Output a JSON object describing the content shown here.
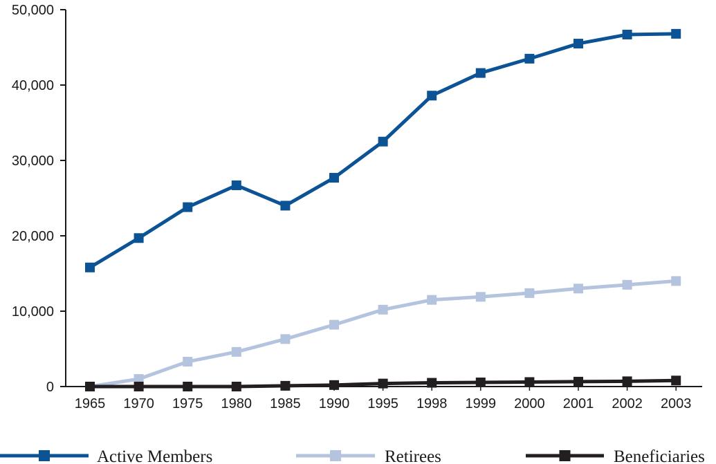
{
  "chart_data": {
    "type": "line",
    "categories": [
      "1965",
      "1970",
      "1975",
      "1980",
      "1985",
      "1990",
      "1995",
      "1998",
      "1999",
      "2000",
      "2001",
      "2002",
      "2003"
    ],
    "ylim": [
      0,
      50000
    ],
    "yticks": [
      0,
      10000,
      20000,
      30000,
      40000,
      50000
    ],
    "ytick_labels": [
      "0",
      "10,000",
      "20,000",
      "30,000",
      "40,000",
      "50,000"
    ],
    "grid": false,
    "legend_position": "bottom",
    "series": [
      {
        "name": "Active Members",
        "color": "#0b5394",
        "values": [
          15800,
          19700,
          23800,
          26700,
          24000,
          27700,
          32500,
          38600,
          41600,
          43500,
          45500,
          46700,
          46800
        ]
      },
      {
        "name": "Retirees",
        "color": "#b4c3de",
        "values": [
          0,
          1000,
          3300,
          4600,
          6300,
          8200,
          10200,
          11500,
          11900,
          12400,
          13000,
          13500,
          14000
        ]
      },
      {
        "name": "Beneficiaries",
        "color": "#231f20",
        "values": [
          0,
          0,
          0,
          0,
          100,
          200,
          400,
          500,
          550,
          600,
          650,
          700,
          800
        ]
      }
    ]
  }
}
